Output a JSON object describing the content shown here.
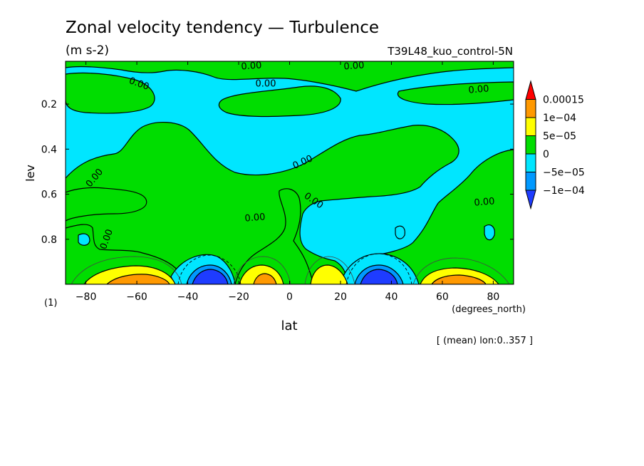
{
  "chart_data": {
    "type": "heatmap",
    "title": "Zonal velocity tendency — Turbulence",
    "units": "(m s-2)",
    "experiment": "T39L48_kuo_control-5N",
    "xlabel": "lat",
    "x_units": "(degrees_north)",
    "ylabel": "lev",
    "y_units": "(1)",
    "footnote": "[ (mean) lon:0..357 ]",
    "xlim": [
      -88,
      88
    ],
    "ylim": [
      1.0,
      0.01
    ],
    "y_reversed": true,
    "x_ticks": [
      -80,
      -60,
      -40,
      -20,
      0,
      20,
      40,
      60,
      80
    ],
    "x_tick_labels": [
      "−80",
      "−60",
      "−40",
      "−20",
      "0",
      "20",
      "40",
      "60",
      "80"
    ],
    "y_ticks": [
      0.2,
      0.4,
      0.6,
      0.8
    ],
    "y_tick_labels": [
      "0.2",
      "0.4",
      "0.6",
      "0.8"
    ],
    "contour_labels": [
      "0.00",
      "0.00",
      "0.00",
      "0.00",
      "0.00",
      "0.00",
      "0.00",
      "0.00",
      "0.00",
      "0.00",
      "0.00"
    ],
    "colorbar": {
      "levels": [
        {
          "label": "0.00015",
          "value": 0.00015,
          "color": "#ff0000"
        },
        {
          "label": "1e−04",
          "value": 0.0001,
          "color": "#ff9900"
        },
        {
          "label": "5e−05",
          "value": 5e-05,
          "color": "#ffff00"
        },
        {
          "label": "0",
          "value": 0,
          "color": "#00dd00"
        },
        {
          "label": "−5e−05",
          "value": -5e-05,
          "color": "#00e6ff"
        },
        {
          "label": "−1e−04",
          "value": -0.0001,
          "color": "#0099ff"
        }
      ],
      "bins": [
        {
          "range": "> 0.00015",
          "color": "#ff0000"
        },
        {
          "range": "1e-04 to 0.00015",
          "color": "#ff9900"
        },
        {
          "range": "5e-05 to 1e-04",
          "color": "#ffff00"
        },
        {
          "range": "0 to 5e-05",
          "color": "#00dd00"
        },
        {
          "range": "-5e-05 to 0",
          "color": "#00e6ff"
        },
        {
          "range": "-1e-04 to -5e-05",
          "color": "#0099ff"
        },
        {
          "range": "< -1e-04",
          "color": "#1e3cff"
        }
      ]
    },
    "regions": [
      {
        "name": "positive-jet-south-high",
        "lat_center": -56,
        "lev": 0.96,
        "level": "1e-04 to 0.00015"
      },
      {
        "name": "negative-core-south",
        "lat_center": -34,
        "lev": 0.96,
        "level": "< -1e-04"
      },
      {
        "name": "positive-core-equator-south",
        "lat_center": -11,
        "lev": 0.96,
        "level": "1e-04 to 0.00015"
      },
      {
        "name": "positive-core-equator-north",
        "lat_center": 14,
        "lev": 0.96,
        "level": "5e-05 to 1e-04"
      },
      {
        "name": "negative-core-north",
        "lat_center": 38,
        "lev": 0.96,
        "level": "< -1e-04"
      },
      {
        "name": "positive-jet-north-high",
        "lat_center": 64,
        "lev": 0.96,
        "level": "1e-04 to 0.00015"
      }
    ]
  }
}
